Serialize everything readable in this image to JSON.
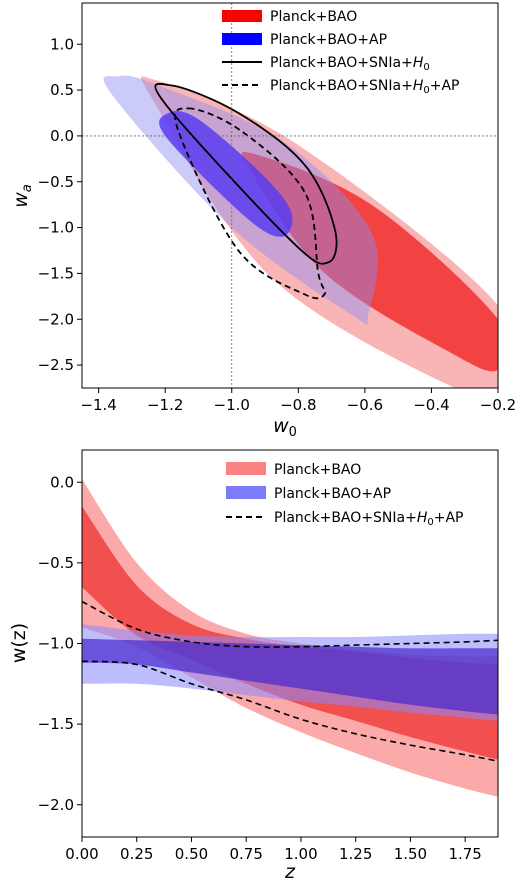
{
  "chart_data": [
    {
      "type": "contour",
      "xlabel": "w",
      "xlabel_sub": "0",
      "ylabel": "w",
      "ylabel_sub": "a",
      "xlim": [
        -1.45,
        -0.2
      ],
      "ylim": [
        -2.75,
        1.45
      ],
      "xticks": [
        "-1.4",
        "-1.2",
        "-1.0",
        "-0.8",
        "-0.6",
        "-0.4",
        "-0.2"
      ],
      "yticks": [
        "1.0",
        "0.5",
        "0.0",
        "-0.5",
        "-1.0",
        "-1.5",
        "-2.0",
        "-2.5"
      ],
      "reference_lines": {
        "w0": -1.0,
        "wa": 0.0
      },
      "legend": [
        {
          "label": "Planck+BAO",
          "style": "fill-red"
        },
        {
          "label": "Planck+BAO+AP",
          "style": "fill-blue"
        },
        {
          "label": "Planck+BAO+SNIa+",
          "label_math": "H",
          "label_sub": "0",
          "label_tail": "",
          "style": "solid-line"
        },
        {
          "label": "Planck+BAO+SNIa+",
          "label_math": "H",
          "label_sub": "0",
          "label_tail": "+AP",
          "style": "dashed-line"
        }
      ],
      "colors": {
        "red_outer": "#f9b5b5",
        "red_inner": "#f23c3c",
        "blue_outer": "#c6c6f7",
        "blue_inner": "#6a4ff0"
      },
      "regions": {
        "red_2sigma": [
          [
            -1.22,
            0.6
          ],
          [
            -0.8,
            -0.1
          ],
          [
            -0.2,
            -1.85
          ],
          [
            -0.2,
            -2.75
          ],
          [
            -0.33,
            -2.75
          ],
          [
            -0.88,
            -1.55
          ],
          [
            -1.23,
            0.35
          ]
        ],
        "red_1sigma": [
          [
            -0.93,
            -0.2
          ],
          [
            -0.58,
            -0.75
          ],
          [
            -0.2,
            -2.0
          ],
          [
            -0.2,
            -2.55
          ],
          [
            -0.35,
            -2.35
          ],
          [
            -0.72,
            -1.5
          ],
          [
            -0.94,
            -0.4
          ]
        ],
        "blue_2sigma": [
          [
            -1.34,
            0.65
          ],
          [
            -1.22,
            0.55
          ],
          [
            -0.85,
            -0.05
          ],
          [
            -0.58,
            -1.05
          ],
          [
            -0.59,
            -1.95
          ],
          [
            -0.64,
            -1.95
          ],
          [
            -1.0,
            -1.0
          ],
          [
            -1.36,
            0.45
          ]
        ],
        "blue_1sigma": [
          [
            -1.19,
            0.25
          ],
          [
            -1.1,
            0.18
          ],
          [
            -0.9,
            -0.45
          ],
          [
            -0.82,
            -0.85
          ],
          [
            -0.85,
            -1.1
          ],
          [
            -0.96,
            -0.88
          ],
          [
            -1.2,
            0.0
          ]
        ],
        "solid_contour": [
          [
            -1.18,
            0.55
          ],
          [
            -0.98,
            0.25
          ],
          [
            -0.78,
            -0.32
          ],
          [
            -0.69,
            -1.02
          ],
          [
            -0.71,
            -1.38
          ],
          [
            -0.82,
            -1.15
          ],
          [
            -1.2,
            0.35
          ]
        ],
        "dashed_contour": [
          [
            -1.13,
            0.3
          ],
          [
            -0.97,
            0.05
          ],
          [
            -0.78,
            -0.62
          ],
          [
            -0.74,
            -1.5
          ],
          [
            -0.72,
            -1.72
          ],
          [
            -0.78,
            -1.73
          ],
          [
            -0.98,
            -1.25
          ],
          [
            -1.16,
            0.05
          ]
        ]
      }
    },
    {
      "type": "area",
      "xlabel": "z",
      "ylabel": "w(z)",
      "xlim": [
        0.0,
        1.9
      ],
      "ylim": [
        -2.2,
        0.2
      ],
      "xticks": [
        "0.00",
        "0.25",
        "0.50",
        "0.75",
        "1.00",
        "1.25",
        "1.50",
        "1.75"
      ],
      "yticks": [
        "0.0",
        "-0.5",
        "-1.0",
        "-1.5",
        "-2.0"
      ],
      "legend": [
        {
          "label": "Planck+BAO",
          "style": "fill-red"
        },
        {
          "label": "Planck+BAO+AP",
          "style": "fill-blue"
        },
        {
          "label": "Planck+BAO+SNIa+",
          "label_math": "H",
          "label_sub": "0",
          "label_tail": "+AP",
          "style": "dashed-line"
        }
      ],
      "colors": {
        "red_outer": "#fc9a9a",
        "red_inner": "#f04040",
        "blue_outer": "#8888ff",
        "blue_inner": "#4428cc"
      },
      "z": [
        0.0,
        0.25,
        0.5,
        0.75,
        1.0,
        1.25,
        1.5,
        1.75,
        1.9
      ],
      "series": [
        {
          "band": "red_outer",
          "upper": [
            0.02,
            -0.5,
            -0.8,
            -0.94,
            -1.0,
            -1.04,
            -1.07,
            -1.08,
            -1.08
          ],
          "lower": [
            -0.9,
            -1.02,
            -1.21,
            -1.4,
            -1.55,
            -1.68,
            -1.8,
            -1.9,
            -1.95
          ]
        },
        {
          "band": "red_inner",
          "upper": [
            -0.15,
            -0.64,
            -0.88,
            -0.97,
            -1.02,
            -1.05,
            -1.09,
            -1.12,
            -1.13
          ],
          "lower": [
            -0.65,
            -0.95,
            -1.1,
            -1.25,
            -1.38,
            -1.48,
            -1.58,
            -1.67,
            -1.72
          ]
        },
        {
          "band": "blue_outer",
          "upper": [
            -0.88,
            -0.92,
            -0.95,
            -0.96,
            -0.96,
            -0.96,
            -0.95,
            -0.94,
            -0.94
          ],
          "lower": [
            -1.25,
            -1.25,
            -1.28,
            -1.32,
            -1.36,
            -1.39,
            -1.43,
            -1.46,
            -1.48
          ]
        },
        {
          "band": "blue_inner",
          "upper": [
            -0.97,
            -0.98,
            -0.99,
            -1.0,
            -1.01,
            -1.02,
            -1.03,
            -1.03,
            -1.03
          ],
          "lower": [
            -1.12,
            -1.13,
            -1.18,
            -1.23,
            -1.28,
            -1.33,
            -1.38,
            -1.42,
            -1.44
          ]
        },
        {
          "band": "dashed_upper",
          "values": [
            -0.74,
            -0.91,
            -0.99,
            -1.02,
            -1.02,
            -1.01,
            -1.0,
            -0.99,
            -0.98
          ]
        },
        {
          "band": "dashed_lower",
          "values": [
            -1.11,
            -1.13,
            -1.25,
            -1.35,
            -1.47,
            -1.56,
            -1.63,
            -1.69,
            -1.73
          ]
        }
      ]
    }
  ]
}
